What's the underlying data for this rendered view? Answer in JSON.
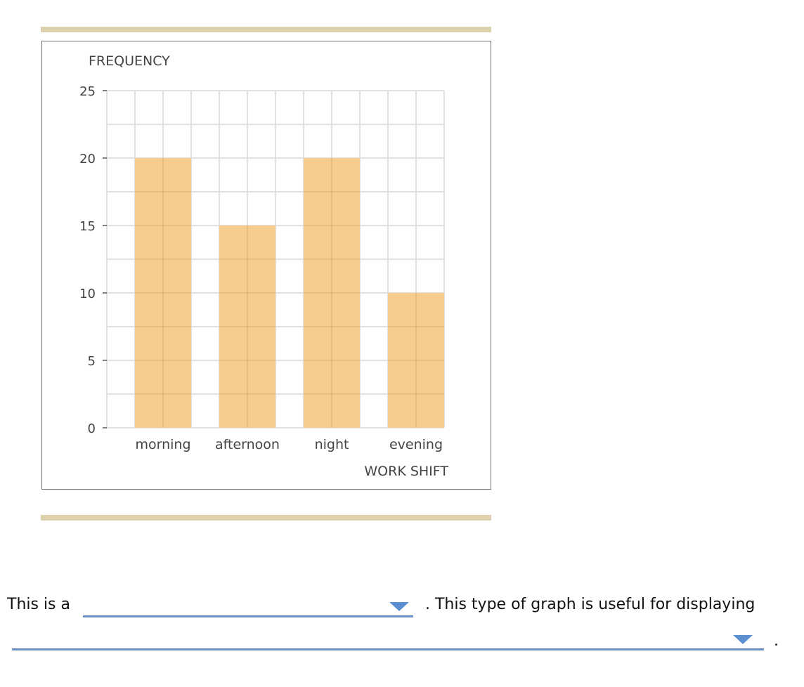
{
  "chart_data": {
    "type": "bar",
    "categories": [
      "morning",
      "afternoon",
      "night",
      "evening"
    ],
    "values": [
      20,
      15,
      20,
      10
    ],
    "ylabel": "FREQUENCY",
    "xlabel": "WORK SHIFT",
    "ylim": [
      0,
      25
    ],
    "yticks": [
      0,
      5,
      10,
      15,
      20,
      25
    ],
    "ytick_labels": [
      "0",
      "5",
      "10",
      "15",
      "20",
      "25"
    ],
    "grid": true,
    "bar_color": "#f6cc8f"
  },
  "question": {
    "part1": "This is a",
    "part2": ". This type of graph is useful for displaying",
    "part3": ".",
    "dropdown1_value": "",
    "dropdown2_value": ""
  },
  "colors": {
    "rule": "#ddd1ad",
    "dropdown_underline": "#6b8fc2",
    "grid": "#d9d9d9"
  }
}
